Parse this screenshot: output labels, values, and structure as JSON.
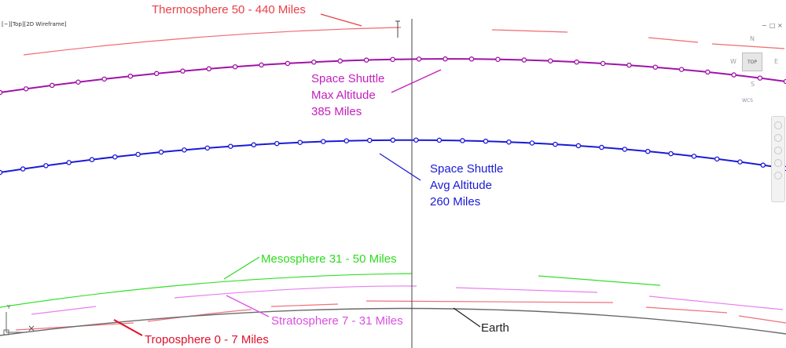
{
  "viewport": {
    "label": "[−][Top][2D Wireframe]",
    "background": "#ffffff"
  },
  "annotations": {
    "thermosphere": "Thermosphere 50 - 440 Miles",
    "shuttle_max": [
      "Space Shuttle",
      "Max Altitude",
      "385 Miles"
    ],
    "shuttle_avg": [
      "Space Shuttle",
      "Avg Altitude",
      "260 Miles"
    ],
    "mesosphere": "Mesosphere 31 - 50 Miles",
    "stratosphere": "Stratosphere 7 - 31 Miles",
    "troposphere": "Troposphere 0 - 7 Miles",
    "earth": "Earth"
  },
  "colors": {
    "thermosphere": "#f06a72",
    "shuttle_max": "#a012a8",
    "shuttle_avg": "#1a1ad6",
    "mesosphere": "#33e02a",
    "stratosphere": "#e87ef0",
    "troposphere": "#f0707a",
    "earth": "#6a6a6a",
    "crosshair": "#444444"
  },
  "view_cube": {
    "north": "N",
    "west": "W",
    "east": "E",
    "south": "S",
    "face": "TOP",
    "ucs_menu": "WCS"
  },
  "ucs_icon": {
    "x_label": "X",
    "y_label": "Y"
  },
  "window_controls": {
    "minimize": "−",
    "restore": "□",
    "close": "×"
  }
}
